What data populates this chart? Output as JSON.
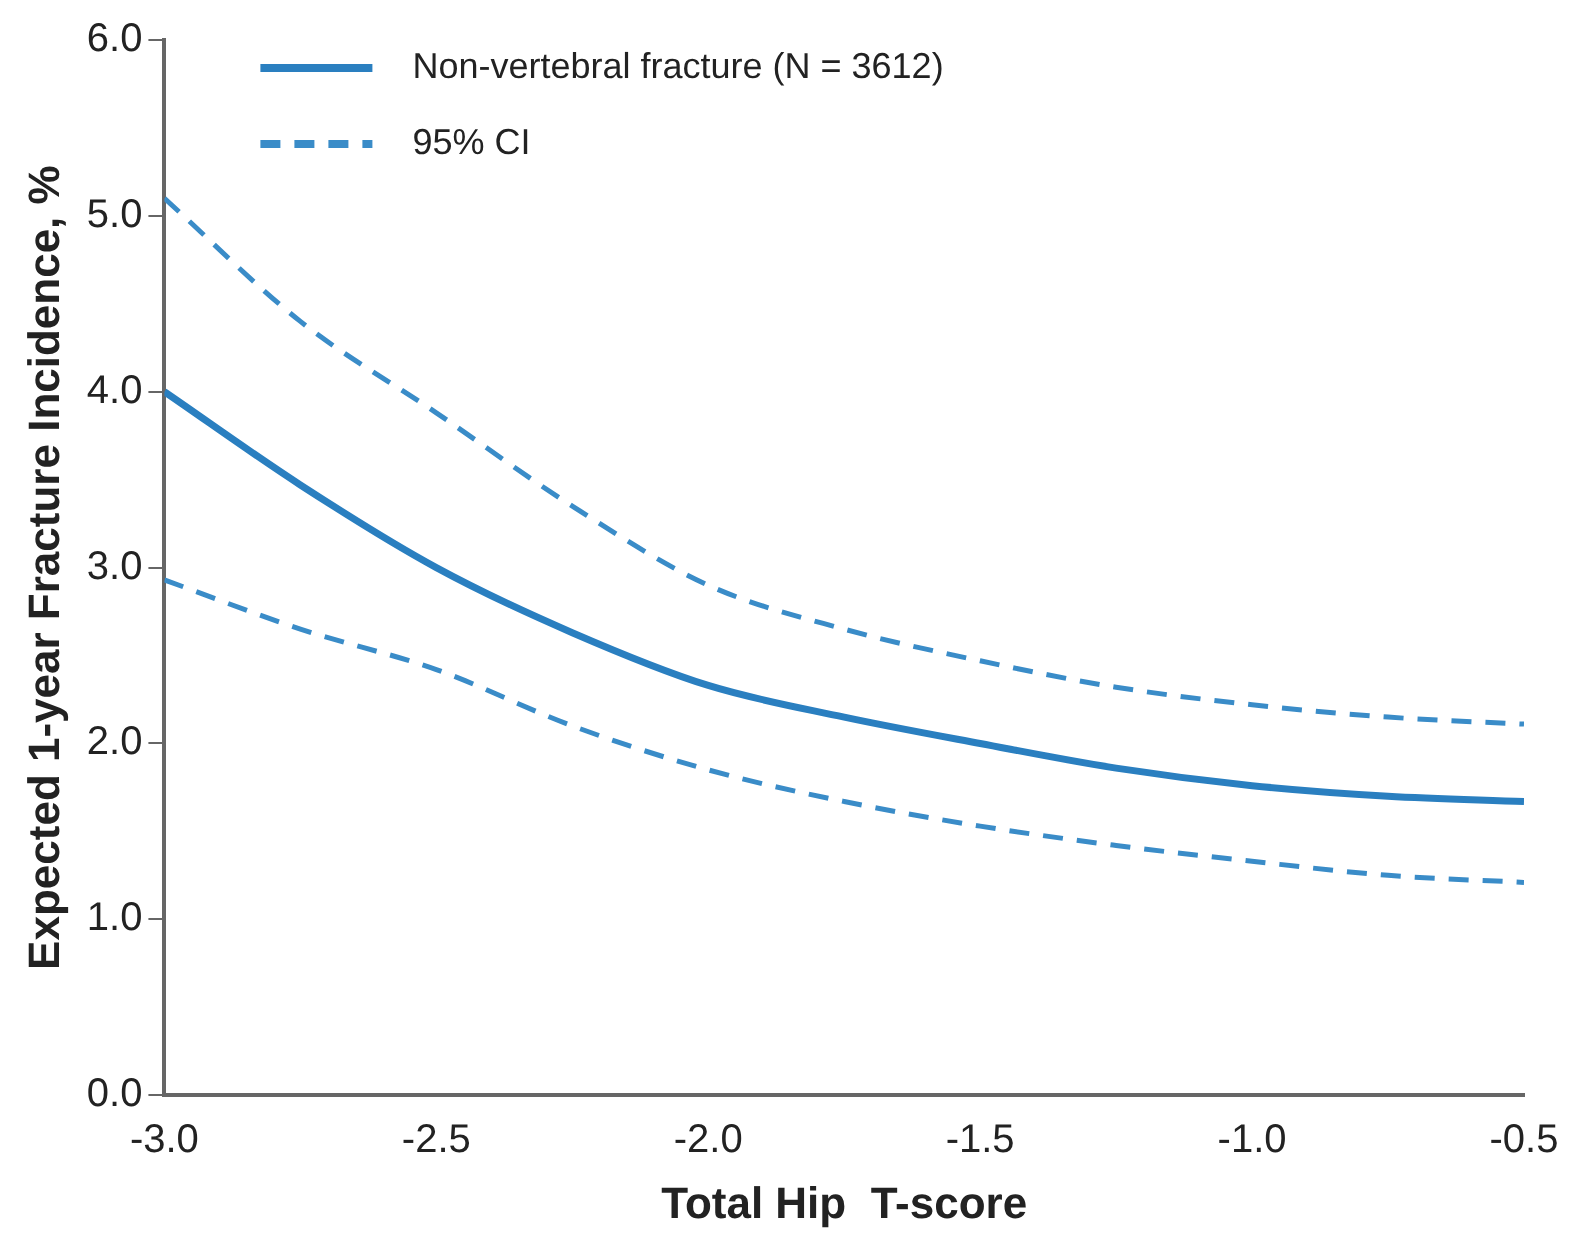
{
  "chart_data": {
    "type": "line",
    "xlabel": "Total Hip  T-score",
    "ylabel": "Expected 1-year Fracture Incidence, %",
    "x": [
      -3,
      -2.75,
      -2.5,
      -2.25,
      -2,
      -1.75,
      -1.5,
      -1.25,
      -1,
      -0.75,
      -0.5
    ],
    "series": [
      {
        "name": "Non-vertebral fracture (N = 3612)",
        "color": "#2a7fc0",
        "line_style": "solid",
        "values": [
          4.0,
          3.47,
          3.0,
          2.63,
          2.33,
          2.15,
          2.0,
          1.86,
          1.76,
          1.7,
          1.67
        ]
      },
      {
        "name": "95% CI",
        "color": "#3a8cc8",
        "line_style": "dashed",
        "values": [
          5.1,
          4.4,
          3.88,
          3.35,
          2.9,
          2.65,
          2.47,
          2.32,
          2.22,
          2.15,
          2.11
        ]
      },
      {
        "color": "#3a8cc8",
        "line_style": "dashed",
        "values": [
          2.93,
          2.65,
          2.42,
          2.1,
          1.85,
          1.67,
          1.53,
          1.42,
          1.33,
          1.25,
          1.21
        ]
      }
    ],
    "xlim": [
      -3,
      -0.5
    ],
    "xticks": [
      {
        "value": -3,
        "label": "-3.0"
      },
      {
        "value": -2.5,
        "label": "-2.5"
      },
      {
        "value": -2,
        "label": "-2.0"
      },
      {
        "value": -1.5,
        "label": "-1.5"
      },
      {
        "value": -1,
        "label": "-1.0"
      },
      {
        "value": -0.5,
        "label": "-0.5"
      }
    ],
    "ylim": [
      0,
      6
    ],
    "yticks": [
      {
        "value": 0,
        "label": "0.0"
      },
      {
        "value": 1,
        "label": "1.0"
      },
      {
        "value": 2,
        "label": "2.0"
      },
      {
        "value": 3,
        "label": "3.0"
      },
      {
        "value": 4,
        "label": "4.0"
      },
      {
        "value": 5,
        "label": "5.0"
      },
      {
        "value": 6,
        "label": "6.0"
      }
    ],
    "grid": false,
    "legend": "top left",
    "marker": "none"
  }
}
